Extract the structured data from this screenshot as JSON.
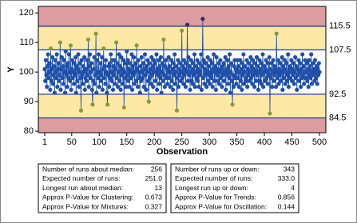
{
  "chart_data": {
    "type": "control",
    "x_label": "Observation",
    "y_label": "Y",
    "xlim": [
      -10.6,
      511.6
    ],
    "xticks": [
      1,
      50,
      100,
      150,
      200,
      250,
      300,
      350,
      400,
      450,
      500
    ],
    "ylim": [
      79.5,
      122.2
    ],
    "yticks": [
      80,
      90,
      100,
      110,
      120
    ],
    "limits": [
      115.5,
      107.5,
      92.5,
      84.5
    ],
    "zone_colors": {
      "outer": "#dc9ca0",
      "inner": "#fde8a6",
      "center": "#ffffff"
    },
    "limit_color": "#1f3f8f",
    "limit_label_color": "#a01818",
    "color": "#1f4fa8",
    "warning_color": "#8a9a3b",
    "alarm_color": "#3a2a6e",
    "x": [
      1,
      2,
      3,
      4,
      5,
      6,
      7,
      8,
      9,
      10,
      11,
      12,
      13,
      14,
      15,
      16,
      17,
      18,
      19,
      20,
      21,
      22,
      23,
      24,
      25,
      26,
      27,
      28,
      29,
      30,
      31,
      32,
      33,
      34,
      35,
      36,
      37,
      38,
      39,
      40,
      41,
      42,
      43,
      44,
      45,
      46,
      47,
      48,
      49,
      50,
      51,
      52,
      53,
      54,
      55,
      56,
      57,
      58,
      59,
      60,
      61,
      62,
      63,
      64,
      65,
      66,
      67,
      68,
      69,
      70,
      71,
      72,
      73,
      74,
      75,
      76,
      77,
      78,
      79,
      80,
      81,
      82,
      83,
      84,
      85,
      86,
      87,
      88,
      89,
      90,
      91,
      92,
      93,
      94,
      95,
      96,
      97,
      98,
      99,
      100,
      101,
      102,
      103,
      104,
      105,
      106,
      107,
      108,
      109,
      110,
      111,
      112,
      113,
      114,
      115,
      116,
      117,
      118,
      119,
      120,
      121,
      122,
      123,
      124,
      125,
      126,
      127,
      128,
      129,
      130,
      131,
      132,
      133,
      134,
      135,
      136,
      137,
      138,
      139,
      140,
      141,
      142,
      143,
      144,
      145,
      146,
      147,
      148,
      149,
      150,
      151,
      152,
      153,
      154,
      155,
      156,
      157,
      158,
      159,
      160,
      161,
      162,
      163,
      164,
      165,
      166,
      167,
      168,
      169,
      170,
      171,
      172,
      173,
      174,
      175,
      176,
      177,
      178,
      179,
      180,
      181,
      182,
      183,
      184,
      185,
      186,
      187,
      188,
      189,
      190,
      191,
      192,
      193,
      194,
      195,
      196,
      197,
      198,
      199,
      200,
      201,
      202,
      203,
      204,
      205,
      206,
      207,
      208,
      209,
      210,
      211,
      212,
      213,
      214,
      215,
      216,
      217,
      218,
      219,
      220,
      221,
      222,
      223,
      224,
      225,
      226,
      227,
      228,
      229,
      230,
      231,
      232,
      233,
      234,
      235,
      236,
      237,
      238,
      239,
      240,
      241,
      242,
      243,
      244,
      245,
      246,
      247,
      248,
      249,
      250,
      251,
      252,
      253,
      254,
      255,
      256,
      257,
      258,
      259,
      260,
      261,
      262,
      263,
      264,
      265,
      266,
      267,
      268,
      269,
      270,
      271,
      272,
      273,
      274,
      275,
      276,
      277,
      278,
      279,
      280,
      281,
      282,
      283,
      284,
      285,
      286,
      287,
      288,
      289,
      290,
      291,
      292,
      293,
      294,
      295,
      296,
      297,
      298,
      299,
      300,
      301,
      302,
      303,
      304,
      305,
      306,
      307,
      308,
      309,
      310,
      311,
      312,
      313,
      314,
      315,
      316,
      317,
      318,
      319,
      320,
      321,
      322,
      323,
      324,
      325,
      326,
      327,
      328,
      329,
      330,
      331,
      332,
      333,
      334,
      335,
      336,
      337,
      338,
      339,
      340,
      341,
      342,
      343,
      344,
      345,
      346,
      347,
      348,
      349,
      350,
      351,
      352,
      353,
      354,
      355,
      356,
      357,
      358,
      359,
      360,
      361,
      362,
      363,
      364,
      365,
      366,
      367,
      368,
      369,
      370,
      371,
      372,
      373,
      374,
      375,
      376,
      377,
      378,
      379,
      380,
      381,
      382,
      383,
      384,
      385,
      386,
      387,
      388,
      389,
      390,
      391,
      392,
      393,
      394,
      395,
      396,
      397,
      398,
      399,
      400,
      401,
      402,
      403,
      404,
      405,
      406,
      407,
      408,
      409,
      410,
      411,
      412,
      413,
      414,
      415,
      416,
      417,
      418,
      419,
      420,
      421,
      422,
      423,
      424,
      425,
      426,
      427,
      428,
      429,
      430,
      431,
      432,
      433,
      434,
      435,
      436,
      437,
      438,
      439,
      440,
      441,
      442,
      443,
      444,
      445,
      446,
      447,
      448,
      449,
      450,
      451,
      452,
      453,
      454,
      455,
      456,
      457,
      458,
      459,
      460,
      461,
      462,
      463,
      464,
      465,
      466,
      467,
      468,
      469,
      470,
      471,
      472,
      473,
      474,
      475,
      476,
      477,
      478,
      479,
      480,
      481,
      482,
      483,
      484,
      485,
      486,
      487,
      488,
      489,
      490,
      491,
      492,
      493,
      494,
      495,
      496,
      497,
      498,
      499,
      500
    ],
    "values": [
      101,
      97,
      104,
      99,
      95,
      102,
      106,
      98,
      100,
      103,
      94,
      108,
      97,
      101,
      105,
      96,
      99,
      102,
      93,
      104,
      100,
      98,
      106,
      95,
      101,
      103,
      97,
      99,
      110,
      94,
      101,
      105,
      98,
      102,
      96,
      104,
      100,
      93,
      107,
      99,
      102,
      95,
      103,
      98,
      106,
      100,
      97,
      109,
      94,
      101,
      104,
      98,
      100,
      96,
      103,
      99,
      105,
      93,
      102,
      97,
      101,
      106,
      95,
      100,
      103,
      98,
      87,
      104,
      99,
      96,
      102,
      100,
      105,
      94,
      98,
      101,
      97,
      104,
      99,
      111,
      95,
      102,
      106,
      98,
      100,
      103,
      94,
      89,
      97,
      101,
      105,
      96,
      99,
      113,
      93,
      104,
      100,
      98,
      106,
      95,
      100,
      103,
      97,
      99,
      105,
      94,
      101,
      108,
      98,
      102,
      96,
      104,
      100,
      93,
      89,
      99,
      102,
      95,
      103,
      98,
      106,
      100,
      97,
      104,
      94,
      102,
      99,
      104,
      96,
      101,
      110,
      98,
      103,
      95,
      100,
      106,
      97,
      102,
      94,
      105,
      99,
      101,
      96,
      104,
      88,
      100,
      103,
      98,
      95,
      107,
      99,
      104,
      97,
      101,
      95,
      103,
      100,
      98,
      106,
      94,
      102,
      99,
      105,
      96,
      100,
      103,
      97,
      109,
      101,
      95,
      104,
      98,
      100,
      93,
      102,
      97,
      105,
      100,
      98,
      103,
      95,
      101,
      106,
      99,
      94,
      102,
      100,
      104,
      97,
      90,
      103,
      98,
      101,
      96,
      105,
      99,
      102,
      95,
      104,
      100,
      103,
      97,
      100,
      106,
      94,
      101,
      99,
      104,
      96,
      102,
      98,
      105,
      93,
      100,
      103,
      97,
      111,
      99,
      95,
      102,
      104,
      98,
      101,
      96,
      100,
      105,
      98,
      102,
      95,
      100,
      104,
      97,
      101,
      94,
      103,
      99,
      106,
      96,
      100,
      102,
      87,
      98,
      104,
      95,
      101,
      99,
      103,
      97,
      100,
      114,
      98,
      102,
      96,
      104,
      99,
      101,
      95,
      103,
      100,
      116,
      97,
      105,
      99,
      102,
      94,
      100,
      104,
      97,
      101,
      96,
      103,
      99,
      106,
      95,
      100,
      102,
      98,
      104,
      97,
      101,
      95,
      103,
      100,
      99,
      106,
      94,
      102,
      118,
      98,
      104,
      96,
      101,
      99,
      103,
      95,
      100,
      105,
      97,
      102,
      99,
      96,
      104,
      100,
      98,
      103,
      95,
      101,
      106,
      97,
      100,
      102,
      94,
      105,
      99,
      101,
      97,
      103,
      96,
      100,
      104,
      98,
      101,
      95,
      102,
      99,
      103,
      97,
      100,
      105,
      94,
      101,
      99,
      104,
      96,
      102,
      98,
      106,
      93,
      100,
      103,
      97,
      89,
      99,
      95,
      102,
      104,
      98,
      101,
      96,
      100,
      104,
      98,
      102,
      95,
      100,
      104,
      97,
      101,
      94,
      103,
      99,
      106,
      96,
      100,
      102,
      97,
      98,
      104,
      95,
      101,
      99,
      103,
      97,
      100,
      105,
      98,
      102,
      96,
      104,
      99,
      101,
      95,
      103,
      100,
      97,
      105,
      99,
      102,
      94,
      100,
      104,
      97,
      101,
      96,
      103,
      99,
      106,
      95,
      100,
      102,
      97,
      101,
      104,
      98,
      100,
      96,
      103,
      99,
      105,
      86,
      101,
      98,
      103,
      95,
      100,
      104,
      97,
      102,
      99,
      101,
      95,
      113,
      100,
      98,
      104,
      96,
      101,
      99,
      103,
      97,
      100,
      105,
      94,
      102,
      98,
      101,
      104,
      96,
      100,
      103,
      97,
      99,
      106,
      95,
      101,
      98,
      102,
      100,
      104,
      97,
      101,
      99,
      103,
      96,
      100,
      105,
      98,
      102,
      94,
      101,
      99,
      104,
      97,
      100,
      103,
      95,
      101,
      98,
      106,
      99,
      102,
      96,
      100,
      104,
      98,
      100,
      103,
      97,
      101,
      95,
      104,
      99,
      102,
      98,
      106,
      96,
      100,
      103,
      99,
      101,
      97,
      104,
      100,
      98,
      102,
      96,
      101,
      99,
      103,
      100
    ]
  },
  "tables": [
    {
      "rows": [
        [
          "Number of runs about median:",
          "256"
        ],
        [
          "Expected number of runs:",
          "251.0"
        ],
        [
          "Longest run about median:",
          "13"
        ],
        [
          "Approx P-Value for Clustering:",
          "0.673"
        ],
        [
          "Approx P-Value for Mixtures:",
          "0.327"
        ]
      ]
    },
    {
      "rows": [
        [
          "Number of runs up or down:",
          "343"
        ],
        [
          "Expected number of runs:",
          "333.0"
        ],
        [
          "Longest run up or down:",
          "4"
        ],
        [
          "Approx P-Value for Trends:",
          "0.856"
        ],
        [
          "Approx P-Value for Oscillation:",
          "0.144"
        ]
      ]
    }
  ]
}
